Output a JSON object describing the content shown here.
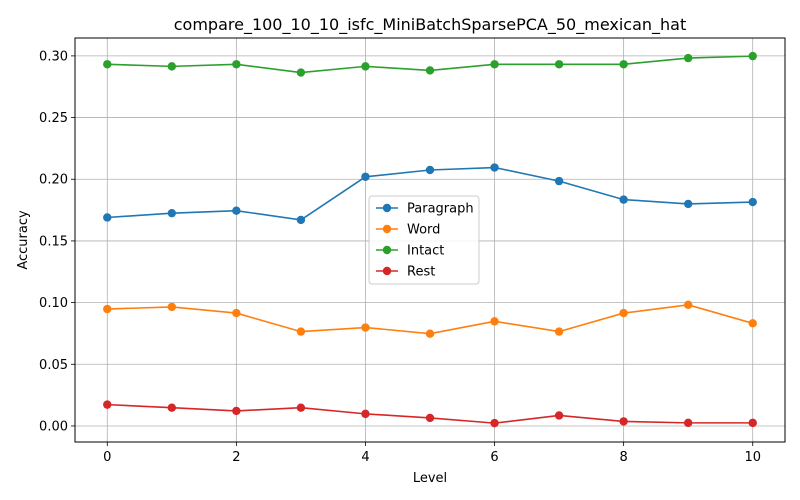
{
  "chart_data": {
    "type": "line",
    "title": "compare_100_10_10_isfc_MiniBatchSparsePCA_50_mexican_hat",
    "xlabel": "Level",
    "ylabel": "Accuracy",
    "x": [
      0,
      1,
      2,
      3,
      4,
      5,
      6,
      7,
      8,
      9,
      10
    ],
    "xlim": [
      -0.5,
      10.5
    ],
    "ylim": [
      -0.013,
      0.3145
    ],
    "xticks": [
      0,
      2,
      4,
      6,
      8,
      10
    ],
    "xtick_labels": [
      "0",
      "2",
      "4",
      "6",
      "8",
      "10"
    ],
    "yticks": [
      0.0,
      0.05,
      0.1,
      0.15,
      0.2,
      0.25,
      0.3
    ],
    "ytick_labels": [
      "0.00",
      "0.05",
      "0.10",
      "0.15",
      "0.20",
      "0.25",
      "0.30"
    ],
    "grid": true,
    "legend_position": "center",
    "series": [
      {
        "name": "Paragraph",
        "color": "#1f77b4",
        "marker": "circle",
        "values": [
          0.169,
          0.1725,
          0.1745,
          0.167,
          0.202,
          0.2075,
          0.2095,
          0.1985,
          0.1835,
          0.18,
          0.1815
        ]
      },
      {
        "name": "Word",
        "color": "#ff7f0e",
        "marker": "circle",
        "values": [
          0.0948,
          0.0965,
          0.0915,
          0.0765,
          0.0798,
          0.0748,
          0.0848,
          0.0765,
          0.0915,
          0.0982,
          0.0832
        ]
      },
      {
        "name": "Intact",
        "color": "#2ca02c",
        "marker": "circle",
        "values": [
          0.2932,
          0.2915,
          0.2932,
          0.2865,
          0.2915,
          0.2882,
          0.2932,
          0.2932,
          0.2932,
          0.2982,
          0.2998
        ]
      },
      {
        "name": "Rest",
        "color": "#d62728",
        "marker": "circle",
        "values": [
          0.0173,
          0.0148,
          0.0122,
          0.0148,
          0.0098,
          0.0065,
          0.0023,
          0.0085,
          0.0037,
          0.0025,
          0.0025
        ]
      }
    ]
  }
}
